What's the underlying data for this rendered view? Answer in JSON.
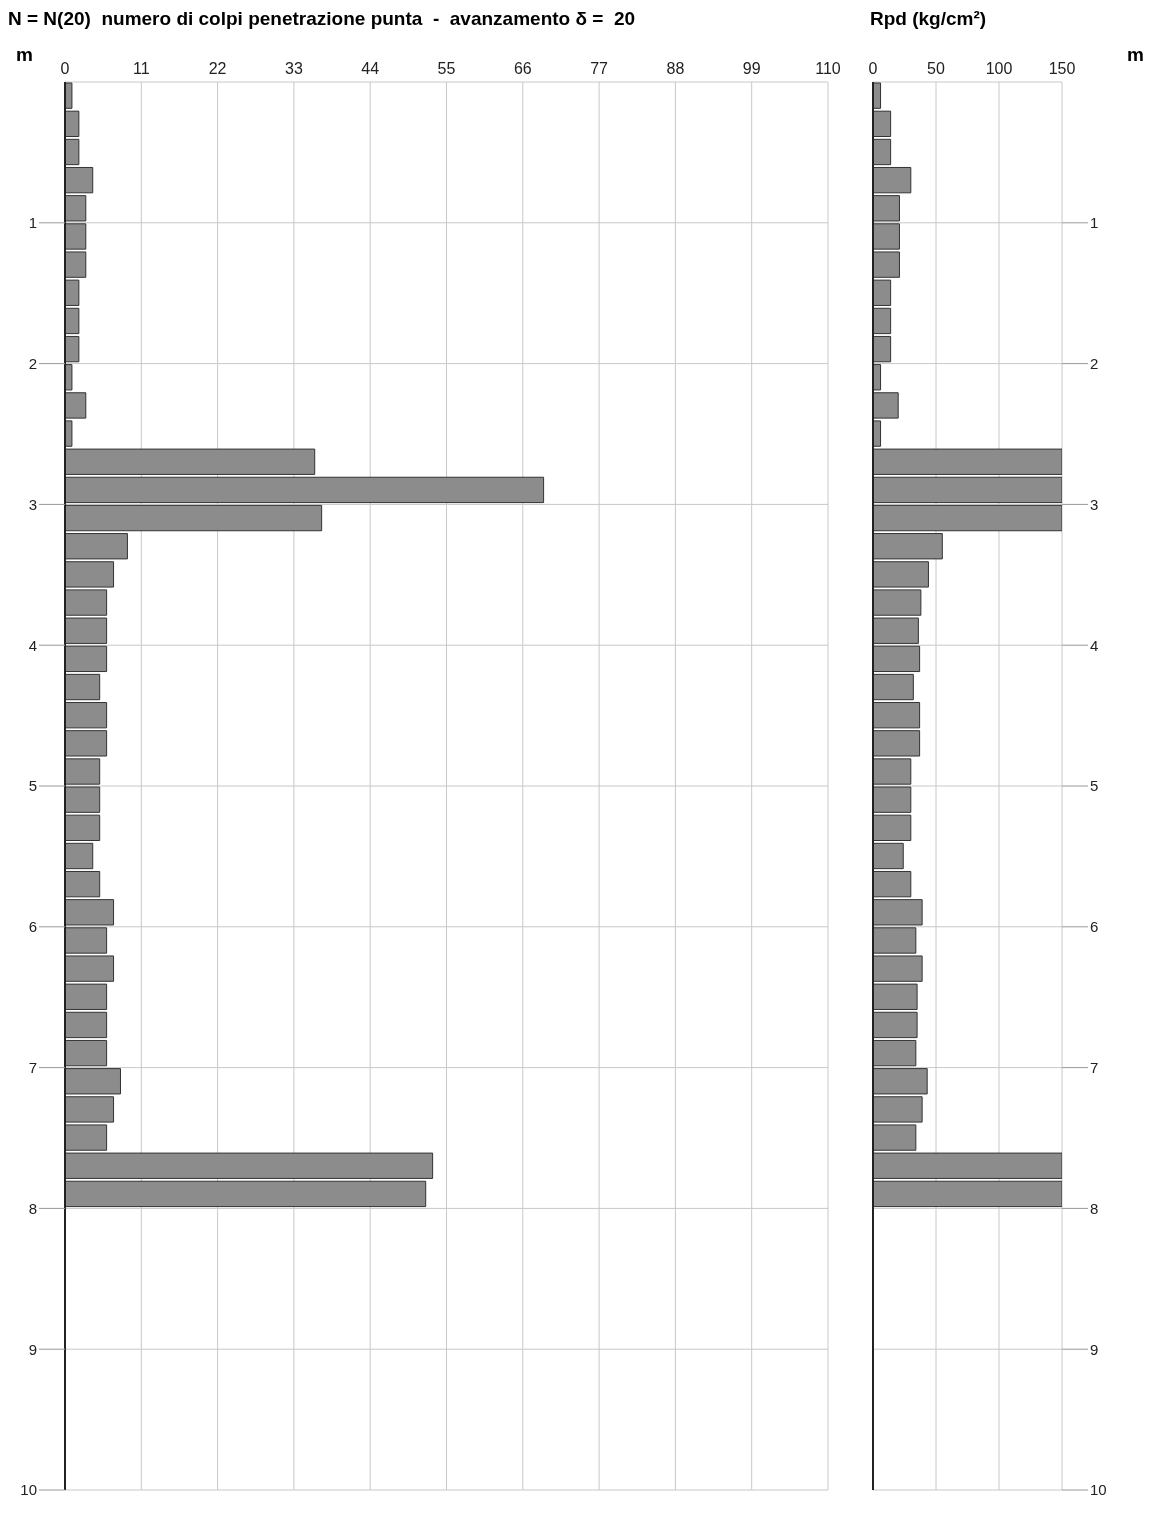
{
  "chart_data": [
    {
      "type": "histogram",
      "orientation": "horizontal",
      "title": "N = N(20)  numero di colpi penetrazione punta  -  avanzamento δ =  20",
      "ylabel": "m",
      "color": "#8c8c8c",
      "grid": true,
      "bins": [
        0,
        0.2,
        0.4,
        0.6,
        0.8,
        1,
        1.2,
        1.4,
        1.6,
        1.8,
        2,
        2.2,
        2.4,
        2.6,
        2.8,
        3,
        3.2,
        3.4,
        3.6,
        3.8,
        4,
        4.2,
        4.4,
        4.6,
        4.8,
        5,
        5.2,
        5.4,
        5.6,
        5.8,
        6,
        6.2,
        6.4,
        6.6,
        6.8,
        7,
        7.2,
        7.4,
        7.6,
        7.8,
        8
      ],
      "values": [
        1,
        2,
        2,
        4,
        3,
        3,
        3,
        2,
        2,
        2,
        1,
        3,
        1,
        36,
        69,
        37,
        9,
        7,
        6,
        6,
        6,
        5,
        6,
        6,
        5,
        5,
        5,
        4,
        5,
        7,
        6,
        7,
        6,
        6,
        6,
        8,
        7,
        6,
        53,
        52
      ],
      "xlim": [
        0,
        110
      ],
      "xticks": [
        0,
        11,
        22,
        33,
        44,
        55,
        66,
        77,
        88,
        99,
        110
      ],
      "ylim": [
        10,
        0
      ],
      "yticks": [
        1,
        2,
        3,
        4,
        5,
        6,
        7,
        8,
        9,
        10
      ]
    },
    {
      "type": "histogram",
      "orientation": "horizontal",
      "title": "Rpd (kg/cm²)",
      "ylabel": "m",
      "color": "#8c8c8c",
      "grid": true,
      "bins": [
        0,
        0.2,
        0.4,
        0.6,
        0.8,
        1,
        1.2,
        1.4,
        1.6,
        1.8,
        2,
        2.2,
        2.4,
        2.6,
        2.8,
        3,
        3.2,
        3.4,
        3.6,
        3.8,
        4,
        4.2,
        4.4,
        4.6,
        4.8,
        5,
        5.2,
        5.4,
        5.6,
        5.8,
        6,
        6.2,
        6.4,
        6.6,
        6.8,
        7,
        7.2,
        7.4,
        7.6,
        7.8,
        8
      ],
      "values": [
        6,
        14,
        14,
        30,
        21,
        21,
        21,
        14,
        14,
        14,
        6,
        20,
        6,
        150,
        150,
        150,
        55,
        44,
        38,
        36,
        37,
        32,
        37,
        37,
        30,
        30,
        30,
        24,
        30,
        39,
        34,
        39,
        35,
        35,
        34,
        43,
        39,
        34,
        150,
        150
      ],
      "xlim": [
        0,
        150
      ],
      "xticks": [
        0,
        50,
        100,
        150
      ],
      "ylim": [
        10,
        0
      ],
      "yticks": [
        1,
        2,
        3,
        4,
        5,
        6,
        7,
        8,
        9,
        10
      ]
    }
  ]
}
